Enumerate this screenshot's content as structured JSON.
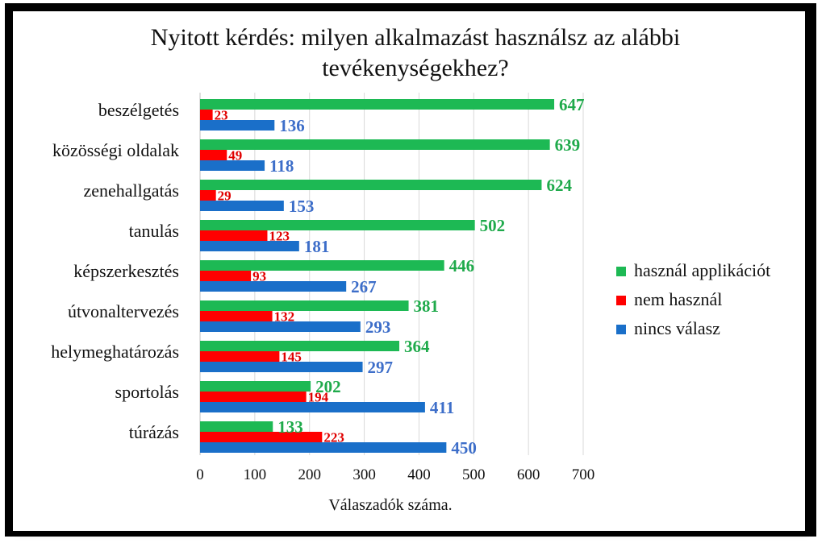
{
  "chart_data": {
    "type": "bar",
    "orientation": "horizontal",
    "title_lines": [
      "Nyitott kérdés: milyen alkalmazást használsz az alábbi",
      "tevékenységekhez?"
    ],
    "xlabel": "Válaszadók száma.",
    "ylabel": "",
    "xlim": [
      0,
      700
    ],
    "xticks": [
      0,
      100,
      200,
      300,
      400,
      500,
      600,
      700
    ],
    "grid": true,
    "legend_position": "right",
    "categories": [
      "beszélgetés",
      "közösségi oldalak",
      "zenehallgatás",
      "tanulás",
      "képszerkesztés",
      "útvonaltervezés",
      "helymeghatározás",
      "sportolás",
      "túrázás"
    ],
    "series": [
      {
        "name": "használ applikációt",
        "color": "#1db954",
        "label_color": "#1faa4b",
        "values": [
          647,
          639,
          624,
          502,
          446,
          381,
          364,
          202,
          133
        ]
      },
      {
        "name": "nem használ",
        "color": "#ff0000",
        "label_color": "#e00000",
        "values": [
          23,
          49,
          29,
          123,
          93,
          132,
          145,
          194,
          223
        ]
      },
      {
        "name": "nincs válasz",
        "color": "#1a6fc9",
        "label_color": "#3d6ec9",
        "values": [
          136,
          118,
          153,
          181,
          267,
          293,
          297,
          411,
          450
        ]
      }
    ]
  }
}
